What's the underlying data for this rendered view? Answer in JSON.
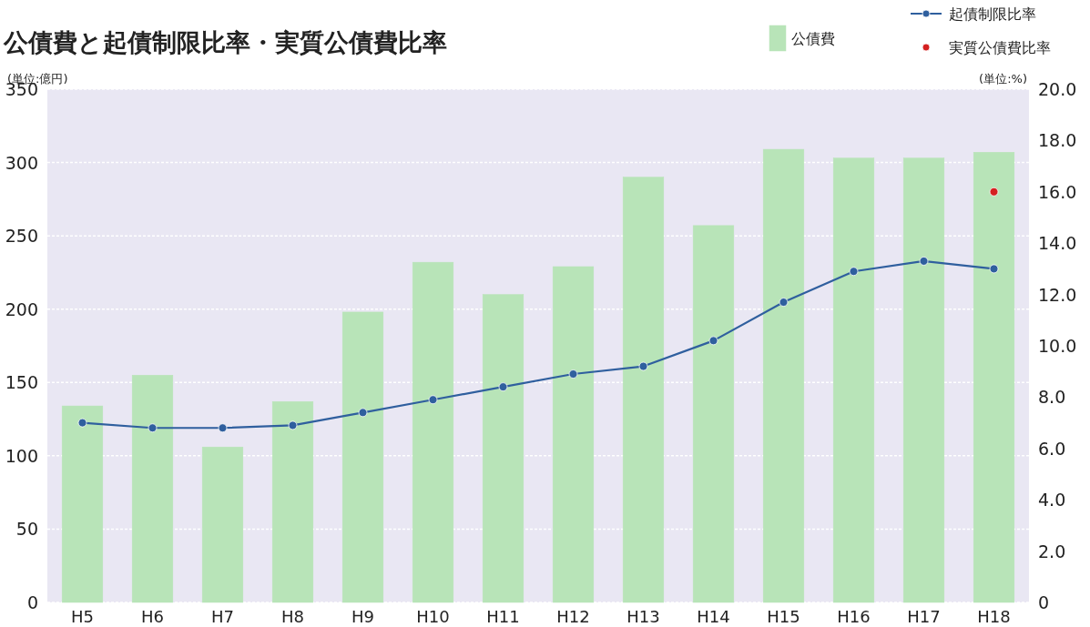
{
  "chart_data": {
    "type": "bar",
    "title": "公債費と起債制限比率・実質公債費比率",
    "ylabel": "(単位:億円)",
    "y2label": "(単位:%)",
    "categories": [
      "H5",
      "H6",
      "H7",
      "H8",
      "H9",
      "H10",
      "H11",
      "H12",
      "H13",
      "H14",
      "H15",
      "H16",
      "H17",
      "H18"
    ],
    "series": [
      {
        "name": "公債費",
        "color": "#b8e4b8",
        "values": [
          134,
          155,
          106,
          137,
          198,
          232,
          210,
          229,
          290,
          257,
          309,
          303,
          303,
          307
        ]
      },
      {
        "name": "起債制限比率",
        "type": "line",
        "axis": "y2",
        "color": "#2f5f9e",
        "values": [
          7.0,
          6.8,
          6.8,
          6.9,
          7.4,
          7.9,
          8.4,
          8.9,
          9.2,
          10.2,
          11.7,
          12.9,
          13.3,
          13.0
        ]
      },
      {
        "name": "実質公債費比率",
        "type": "scatter",
        "axis": "y2",
        "color": "#d42020",
        "values": [
          null,
          null,
          null,
          null,
          null,
          null,
          null,
          null,
          null,
          null,
          null,
          null,
          null,
          16.0
        ]
      }
    ],
    "ylim": [
      0,
      350
    ],
    "yticks": [
      0,
      50,
      100,
      150,
      200,
      250,
      300,
      350
    ],
    "y2lim": [
      0,
      20
    ],
    "y2ticks": [
      0,
      {
        "value": 2,
        "label": "2.0"
      },
      {
        "value": 4,
        "label": "4.0"
      },
      {
        "value": 6,
        "label": "6.0"
      },
      {
        "value": 8,
        "label": "8.0"
      },
      {
        "value": 10,
        "label": "10.0"
      },
      {
        "value": 12,
        "label": "12.0"
      },
      {
        "value": 14,
        "label": "14.0"
      },
      {
        "value": 16,
        "label": "16.0"
      },
      {
        "value": 18,
        "label": "18.0"
      },
      {
        "value": 20,
        "label": "20.0"
      }
    ],
    "grid": "y",
    "legend": "top right",
    "marker": "circle"
  }
}
